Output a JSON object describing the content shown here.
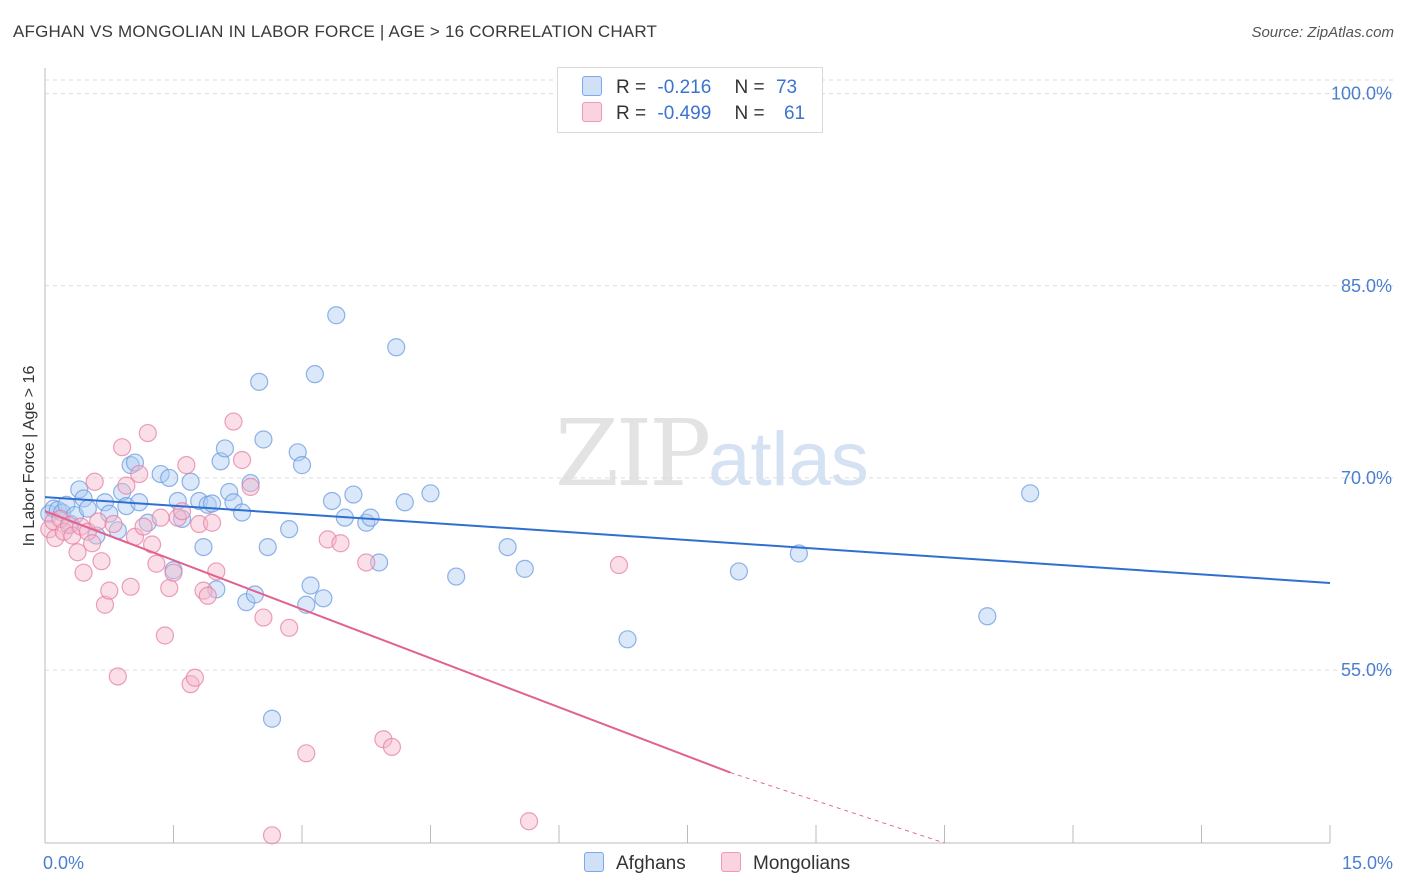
{
  "header": {
    "title": "AFGHAN VS MONGOLIAN IN LABOR FORCE | AGE > 16 CORRELATION CHART",
    "source": "Source: ZipAtlas.com"
  },
  "watermark": {
    "zip": "ZIP",
    "atlas": "atlas"
  },
  "legend": {
    "rows": [
      {
        "r_label": "R =",
        "r_value": "-0.216",
        "n_label": "N =",
        "n_value": "73",
        "color": "#aecbf2"
      },
      {
        "r_label": "R =",
        "r_value": "-0.499",
        "n_label": "N =",
        "n_value": "61",
        "color": "#f5b8cc"
      }
    ]
  },
  "bottom_legend": {
    "afghans": "Afghans",
    "mongolians": "Mongolians"
  },
  "chart_data": {
    "type": "scatter",
    "title": "AFGHAN VS MONGOLIAN IN LABOR FORCE | AGE > 16 CORRELATION CHART",
    "xlabel": "",
    "ylabel": "In Labor Force | Age > 16",
    "xlim": [
      0,
      15
    ],
    "ylim": [
      41.5,
      102
    ],
    "x_tick_labels": [
      "0.0%",
      "15.0%"
    ],
    "y_ticks": [
      55,
      70,
      85,
      100
    ],
    "y_tick_labels": [
      "55.0%",
      "70.0%",
      "85.0%",
      "100.0%"
    ],
    "grid": true,
    "legend_position": "top-center",
    "series": [
      {
        "name": "Afghans",
        "color": "#6b9be0",
        "fill": "#aecbf2",
        "trend": {
          "x": [
            0,
            15
          ],
          "y": [
            68.5,
            61.8
          ]
        },
        "points": [
          [
            0.05,
            67.2
          ],
          [
            0.1,
            67.6
          ],
          [
            0.15,
            67.5
          ],
          [
            0.2,
            67.3
          ],
          [
            0.25,
            67.9
          ],
          [
            0.3,
            66.4
          ],
          [
            0.35,
            67.1
          ],
          [
            0.4,
            69.1
          ],
          [
            0.45,
            68.4
          ],
          [
            0.5,
            67.6
          ],
          [
            0.6,
            65.5
          ],
          [
            0.7,
            68.1
          ],
          [
            0.75,
            67.2
          ],
          [
            0.85,
            65.9
          ],
          [
            0.9,
            68.9
          ],
          [
            0.95,
            67.8
          ],
          [
            1.0,
            71.0
          ],
          [
            1.05,
            71.2
          ],
          [
            1.1,
            68.1
          ],
          [
            1.2,
            66.5
          ],
          [
            1.35,
            70.3
          ],
          [
            1.45,
            70.0
          ],
          [
            1.5,
            62.8
          ],
          [
            1.55,
            68.2
          ],
          [
            1.6,
            66.8
          ],
          [
            1.7,
            69.7
          ],
          [
            1.8,
            68.2
          ],
          [
            1.85,
            64.6
          ],
          [
            1.9,
            67.9
          ],
          [
            1.95,
            68.0
          ],
          [
            2.0,
            61.3
          ],
          [
            2.05,
            71.3
          ],
          [
            2.1,
            72.3
          ],
          [
            2.15,
            68.9
          ],
          [
            2.2,
            68.1
          ],
          [
            2.3,
            67.3
          ],
          [
            2.35,
            60.3
          ],
          [
            2.4,
            69.6
          ],
          [
            2.45,
            60.9
          ],
          [
            2.5,
            77.5
          ],
          [
            2.55,
            73.0
          ],
          [
            2.6,
            64.6
          ],
          [
            2.65,
            51.2
          ],
          [
            2.85,
            66.0
          ],
          [
            2.95,
            72.0
          ],
          [
            3.0,
            71.0
          ],
          [
            3.05,
            60.1
          ],
          [
            3.1,
            61.6
          ],
          [
            3.15,
            78.1
          ],
          [
            3.25,
            60.6
          ],
          [
            3.35,
            68.2
          ],
          [
            3.4,
            82.7
          ],
          [
            3.5,
            66.9
          ],
          [
            3.6,
            68.7
          ],
          [
            3.75,
            66.5
          ],
          [
            3.8,
            66.9
          ],
          [
            3.9,
            63.4
          ],
          [
            4.1,
            80.2
          ],
          [
            4.2,
            68.1
          ],
          [
            4.5,
            68.8
          ],
          [
            4.8,
            62.3
          ],
          [
            5.4,
            64.6
          ],
          [
            5.6,
            62.9
          ],
          [
            6.8,
            57.4
          ],
          [
            8.1,
            62.7
          ],
          [
            8.8,
            64.1
          ],
          [
            11.0,
            59.2
          ],
          [
            11.5,
            68.8
          ]
        ]
      },
      {
        "name": "Mongolians",
        "color": "#e77fa4",
        "fill": "#f5b8cc",
        "trend": {
          "x": [
            0,
            8.0
          ],
          "y": [
            67.4,
            47.0
          ]
        },
        "trend_dashed": {
          "x": [
            8.0,
            10.5
          ],
          "y": [
            47.0,
            41.5
          ]
        },
        "points": [
          [
            0.05,
            66.0
          ],
          [
            0.1,
            66.6
          ],
          [
            0.12,
            65.3
          ],
          [
            0.18,
            66.8
          ],
          [
            0.22,
            65.8
          ],
          [
            0.28,
            66.3
          ],
          [
            0.32,
            65.5
          ],
          [
            0.38,
            64.2
          ],
          [
            0.42,
            66.2
          ],
          [
            0.45,
            62.6
          ],
          [
            0.5,
            65.8
          ],
          [
            0.55,
            64.9
          ],
          [
            0.58,
            69.7
          ],
          [
            0.62,
            66.6
          ],
          [
            0.66,
            63.5
          ],
          [
            0.7,
            60.1
          ],
          [
            0.75,
            61.2
          ],
          [
            0.8,
            66.4
          ],
          [
            0.85,
            54.5
          ],
          [
            0.9,
            72.4
          ],
          [
            0.95,
            69.4
          ],
          [
            1.0,
            61.5
          ],
          [
            1.05,
            65.4
          ],
          [
            1.1,
            70.3
          ],
          [
            1.15,
            66.2
          ],
          [
            1.2,
            73.5
          ],
          [
            1.25,
            64.8
          ],
          [
            1.3,
            63.3
          ],
          [
            1.35,
            66.9
          ],
          [
            1.4,
            57.7
          ],
          [
            1.45,
            61.4
          ],
          [
            1.5,
            62.6
          ],
          [
            1.55,
            66.9
          ],
          [
            1.6,
            67.4
          ],
          [
            1.65,
            71.0
          ],
          [
            1.7,
            53.9
          ],
          [
            1.75,
            54.4
          ],
          [
            1.8,
            66.4
          ],
          [
            1.85,
            61.2
          ],
          [
            1.9,
            60.8
          ],
          [
            1.95,
            66.5
          ],
          [
            2.0,
            62.7
          ],
          [
            2.2,
            74.4
          ],
          [
            2.3,
            71.4
          ],
          [
            2.4,
            69.3
          ],
          [
            2.55,
            59.1
          ],
          [
            2.65,
            42.1
          ],
          [
            2.85,
            58.3
          ],
          [
            3.05,
            48.5
          ],
          [
            3.3,
            65.2
          ],
          [
            3.45,
            64.9
          ],
          [
            3.75,
            63.4
          ],
          [
            3.95,
            49.6
          ],
          [
            4.05,
            49.0
          ],
          [
            5.65,
            43.2
          ],
          [
            6.7,
            63.2
          ]
        ]
      }
    ]
  }
}
